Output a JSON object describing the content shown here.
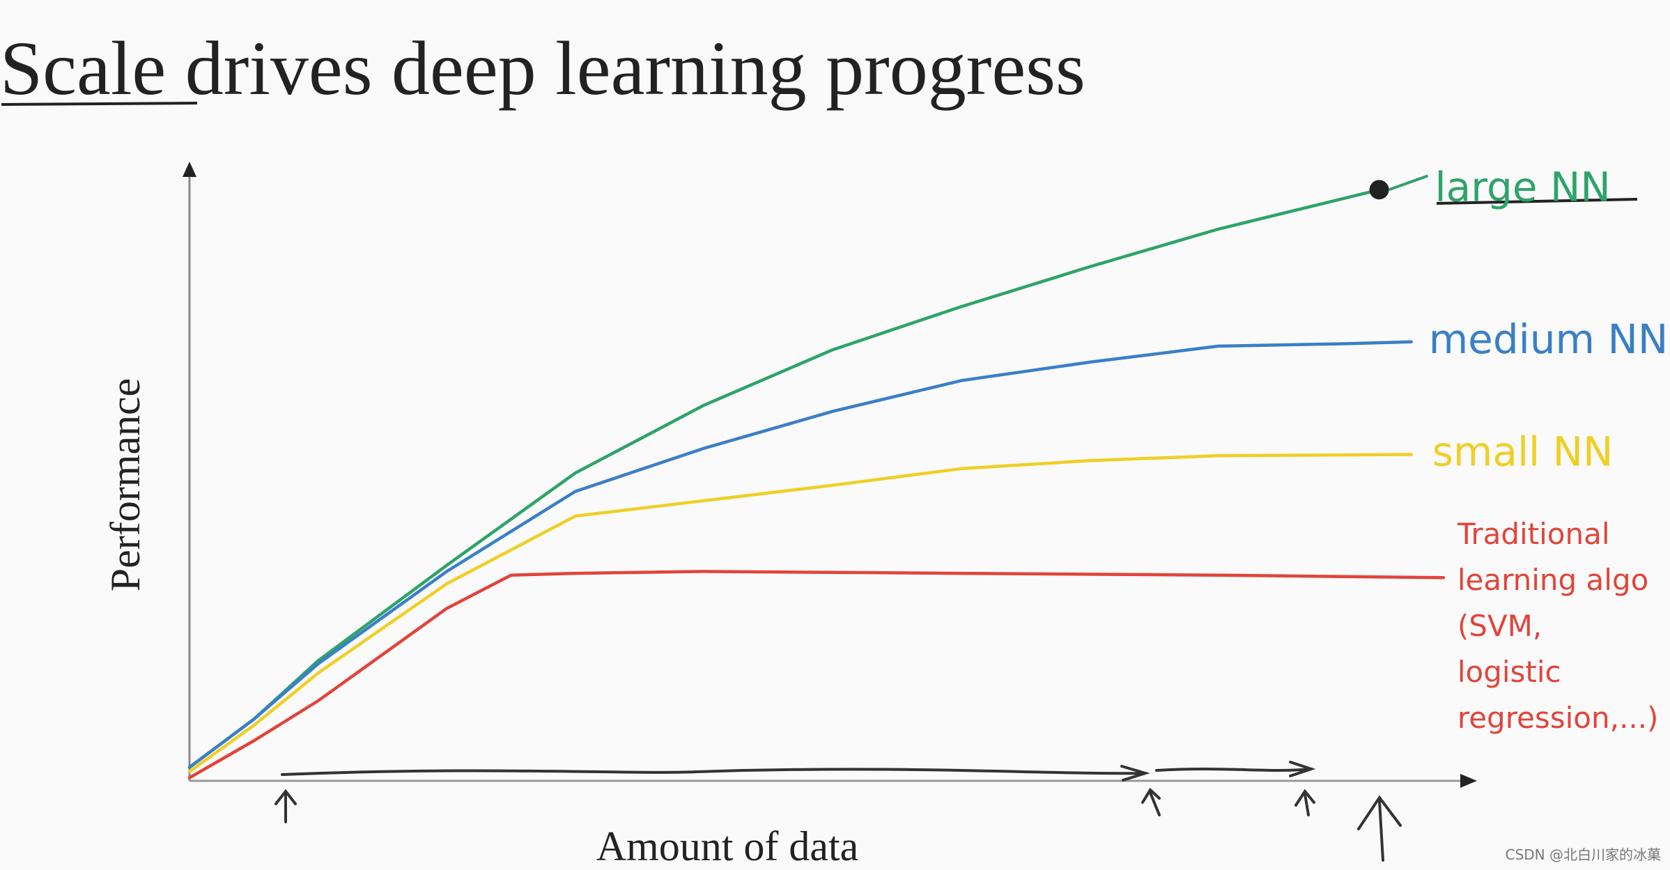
{
  "chart_data": {
    "type": "line",
    "title": "Scale drives deep learning progress",
    "title_underlined": "Scale",
    "xlabel": "Amount of data",
    "ylabel": "Performance",
    "xlim": [
      0,
      100
    ],
    "ylim": [
      0,
      100
    ],
    "series": [
      {
        "name": "large NN",
        "color": "#2ea36a",
        "x": [
          0,
          5,
          10,
          20,
          30,
          40,
          50,
          60,
          70,
          80,
          92.5
        ],
        "values": [
          2.2,
          10,
          19.5,
          35,
          50,
          61,
          70,
          77,
          83.5,
          89.6,
          96
        ]
      },
      {
        "name": "medium NN",
        "color": "#3a7fc8",
        "x": [
          0,
          5,
          10,
          20,
          30,
          40,
          50,
          60,
          70,
          80,
          90,
          95
        ],
        "values": [
          2.2,
          10,
          19,
          34,
          47,
          54,
          60,
          65,
          68,
          70.6,
          71,
          71.3
        ]
      },
      {
        "name": "small NN",
        "color": "#f0cf25",
        "x": [
          0,
          5,
          10,
          20,
          30,
          40,
          50,
          60,
          70,
          80,
          95
        ],
        "values": [
          1.5,
          9,
          17.5,
          32,
          43,
          45.5,
          48,
          50.7,
          52,
          52.8,
          53
        ]
      },
      {
        "name": "Traditional\nlearning algo\n(SVM,\nlogistic\nregression,...)",
        "color": "#e2443a",
        "x": [
          0,
          5,
          10,
          20,
          25,
          30,
          40,
          60,
          80,
          97.5
        ],
        "values": [
          0.5,
          6.5,
          13,
          28,
          33.4,
          33.7,
          34,
          33.7,
          33.4,
          33
        ]
      }
    ],
    "watermark": "CSDN @北白川家的冰菓"
  }
}
